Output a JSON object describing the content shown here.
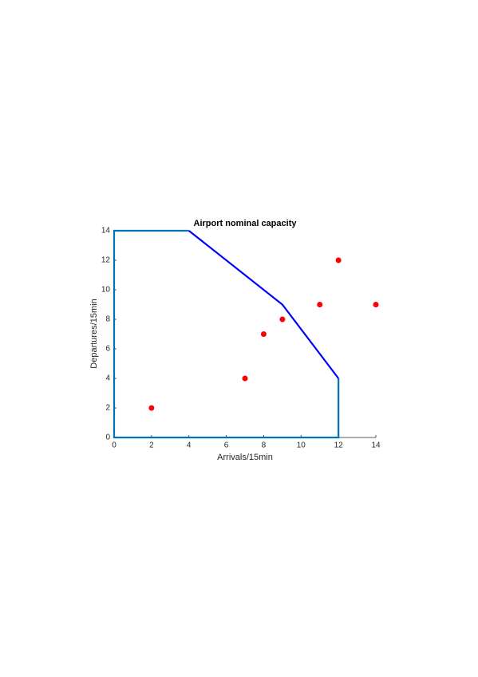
{
  "chart_data": {
    "type": "line",
    "title": "Airport nominal capacity",
    "x_label": "Arrivals/15min",
    "y_label": "Departures/15min",
    "xlim": [
      0,
      14
    ],
    "ylim": [
      0,
      14
    ],
    "xticks": [
      0,
      2,
      4,
      6,
      8,
      10,
      12,
      14
    ],
    "yticks": [
      0,
      2,
      4,
      6,
      8,
      10,
      12,
      14
    ],
    "series": [
      {
        "type": "line",
        "color": "#0072bd",
        "x": [
          4,
          0,
          0,
          12,
          12
        ],
        "values": [
          14,
          14,
          0,
          0,
          4
        ]
      },
      {
        "type": "line",
        "color": "#0000ff",
        "x": [
          4,
          9,
          12
        ],
        "values": [
          14,
          9,
          4
        ]
      },
      {
        "type": "scatter",
        "color": "#ff0000",
        "x": [
          2,
          7,
          8,
          9,
          11,
          12,
          14
        ],
        "values": [
          2,
          4,
          7,
          8,
          9,
          12,
          9
        ]
      }
    ]
  }
}
